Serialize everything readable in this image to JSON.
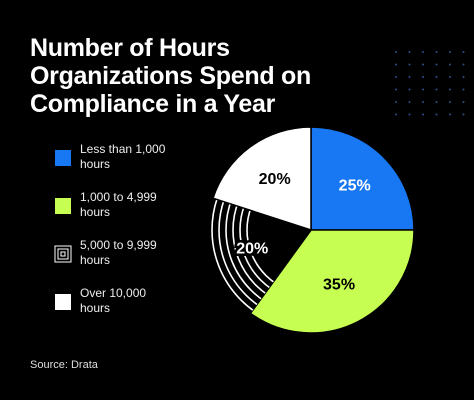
{
  "chart_data": {
    "type": "pie",
    "title": "Number of Hours Organizations Spend on Compliance in a Year",
    "categories": [
      "Less than 1,000 hours",
      "1,000 to 4,999 hours",
      "5,000 to 9,999 hours",
      "Over 10,000 hours"
    ],
    "values": [
      25,
      35,
      20,
      20
    ],
    "value_labels": [
      "25%",
      "35%",
      "20%",
      "20%"
    ],
    "colors": [
      "#1877f2",
      "#c6ff52",
      "#000000",
      "#ffffff"
    ],
    "hatch": [
      false,
      false,
      true,
      false
    ],
    "source": "Source: Drata"
  }
}
